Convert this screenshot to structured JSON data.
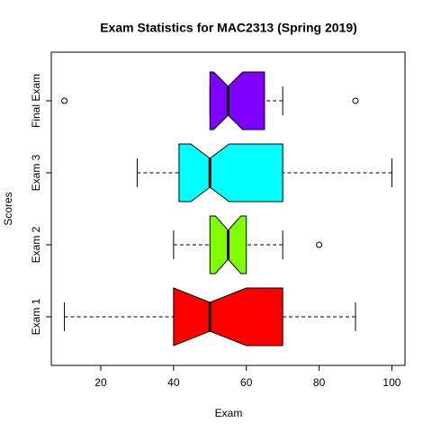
{
  "chart_data": {
    "type": "boxplot",
    "orientation": "horizontal",
    "notch": true,
    "title": "Exam Statistics for MAC2313 (Spring 2019)",
    "x_label": "Exam",
    "y_label": "Scores",
    "xlim": [
      6.4,
      103.6
    ],
    "xticks": [
      20,
      40,
      60,
      80,
      100
    ],
    "series": [
      {
        "name": "Exam 1",
        "color": "#ff0000",
        "whisker_low": 10,
        "q1": 40,
        "median": 50,
        "q3": 70,
        "whisker_high": 90,
        "notch_low": 40,
        "notch_high": 60,
        "outliers": []
      },
      {
        "name": "Exam 2",
        "color": "#7fff00",
        "whisker_low": 40,
        "q1": 50,
        "median": 55,
        "q3": 60,
        "whisker_high": 70,
        "notch_low": 51.5,
        "notch_high": 58.5,
        "outliers": [
          80
        ]
      },
      {
        "name": "Exam 3",
        "color": "#00ffff",
        "whisker_low": 30,
        "q1": 41.5,
        "median": 50,
        "q3": 70,
        "whisker_high": 100,
        "notch_low": 44.75,
        "notch_high": 55.25,
        "outliers": []
      },
      {
        "name": "Final Exam",
        "color": "#7f00ff",
        "whisker_low": 50,
        "q1": 50,
        "median": 55,
        "q3": 65,
        "whisker_high": 70,
        "notch_low": 51,
        "notch_high": 59,
        "outliers": [
          10,
          90
        ]
      }
    ]
  }
}
